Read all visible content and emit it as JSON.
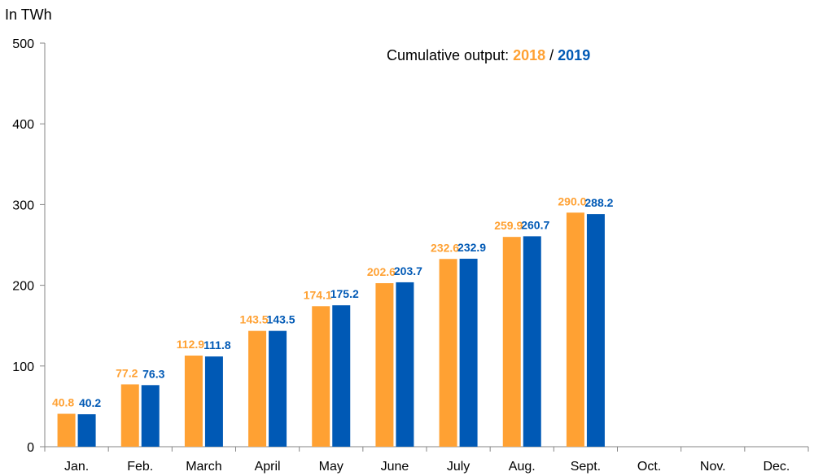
{
  "chart_data": {
    "type": "bar",
    "unit_label": "In TWh",
    "legend": {
      "prefix": "Cumulative output: ",
      "separator": " / ",
      "placement": "top-center"
    },
    "categories": [
      "Jan.",
      "Feb.",
      "March",
      "April",
      "May",
      "June",
      "July",
      "Aug.",
      "Sept.",
      "Oct.",
      "Nov.",
      "Dec."
    ],
    "series": [
      {
        "name": "2018",
        "color": "#FFA133",
        "values": [
          40.8,
          77.2,
          112.9,
          143.5,
          174.1,
          202.6,
          232.6,
          259.9,
          290.0,
          null,
          null,
          null
        ],
        "labels": [
          "40.8",
          "77.2",
          "112.9",
          "143.5",
          "174.1",
          "202.6",
          "232.6",
          "259.9",
          "290.0",
          "",
          "",
          ""
        ]
      },
      {
        "name": "2019",
        "color": "#0059B5",
        "values": [
          40.2,
          76.3,
          111.8,
          143.5,
          175.2,
          203.7,
          232.9,
          260.7,
          288.2,
          null,
          null,
          null
        ],
        "labels": [
          "40.2",
          "76.3",
          "111.8",
          "143.5",
          "175.2",
          "203.7",
          "232.9",
          "260.7",
          "288.2",
          "",
          "",
          ""
        ]
      }
    ],
    "ylim": [
      0,
      500
    ],
    "yticks": [
      "0",
      "100",
      "200",
      "300",
      "400",
      "500"
    ],
    "grid": false
  }
}
